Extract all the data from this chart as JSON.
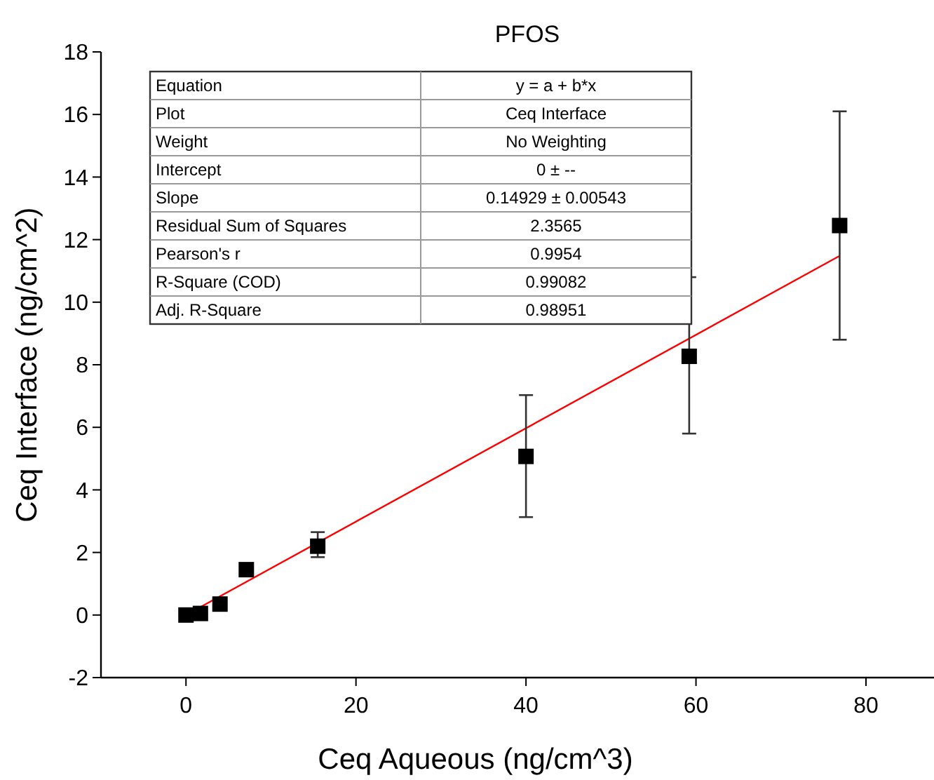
{
  "chart_data": {
    "type": "scatter",
    "title": "PFOS",
    "xlabel": "Ceq Aqueous (ng/cm^3)",
    "ylabel": "Ceq Interface (ng/cm^2)",
    "xlim": [
      -10,
      88
    ],
    "xticks": [
      0,
      20,
      40,
      60,
      80
    ],
    "ylim": [
      -2,
      18
    ],
    "yticks": [
      -2,
      0,
      2,
      4,
      6,
      8,
      10,
      12,
      14,
      16,
      18
    ],
    "grid": false,
    "series": [
      {
        "marker": "square",
        "color": "#000000",
        "x": [
          0,
          1.7,
          4,
          7.1,
          15.5,
          40,
          59.2,
          76.9
        ],
        "values": [
          0,
          0.05,
          0.35,
          1.45,
          2.2,
          5.07,
          8.27,
          12.45
        ],
        "errors": [
          null,
          null,
          null,
          null,
          [
            1.85,
            2.65
          ],
          [
            3.13,
            7.03
          ],
          [
            5.8,
            10.8
          ],
          [
            8.8,
            16.1
          ]
        ]
      },
      {
        "type": "line",
        "color": "#ff0000",
        "x": [
          0,
          76.9
        ],
        "values": [
          0,
          11.48
        ],
        "line_style": "solid"
      }
    ],
    "annotations": [
      "Equation",
      "y = a + b*x",
      "Plot",
      "Ceq Interface",
      "Weight",
      "No Weighting",
      "Intercept",
      "0 ± --",
      "Slope",
      "0.14929 ± 0.00543",
      "Residual Sum of Squares",
      "2.3565",
      "Pearson's r",
      "0.9954",
      "R-Square (COD)",
      "0.99082",
      "Adj. R-Square",
      "0.98951"
    ]
  }
}
